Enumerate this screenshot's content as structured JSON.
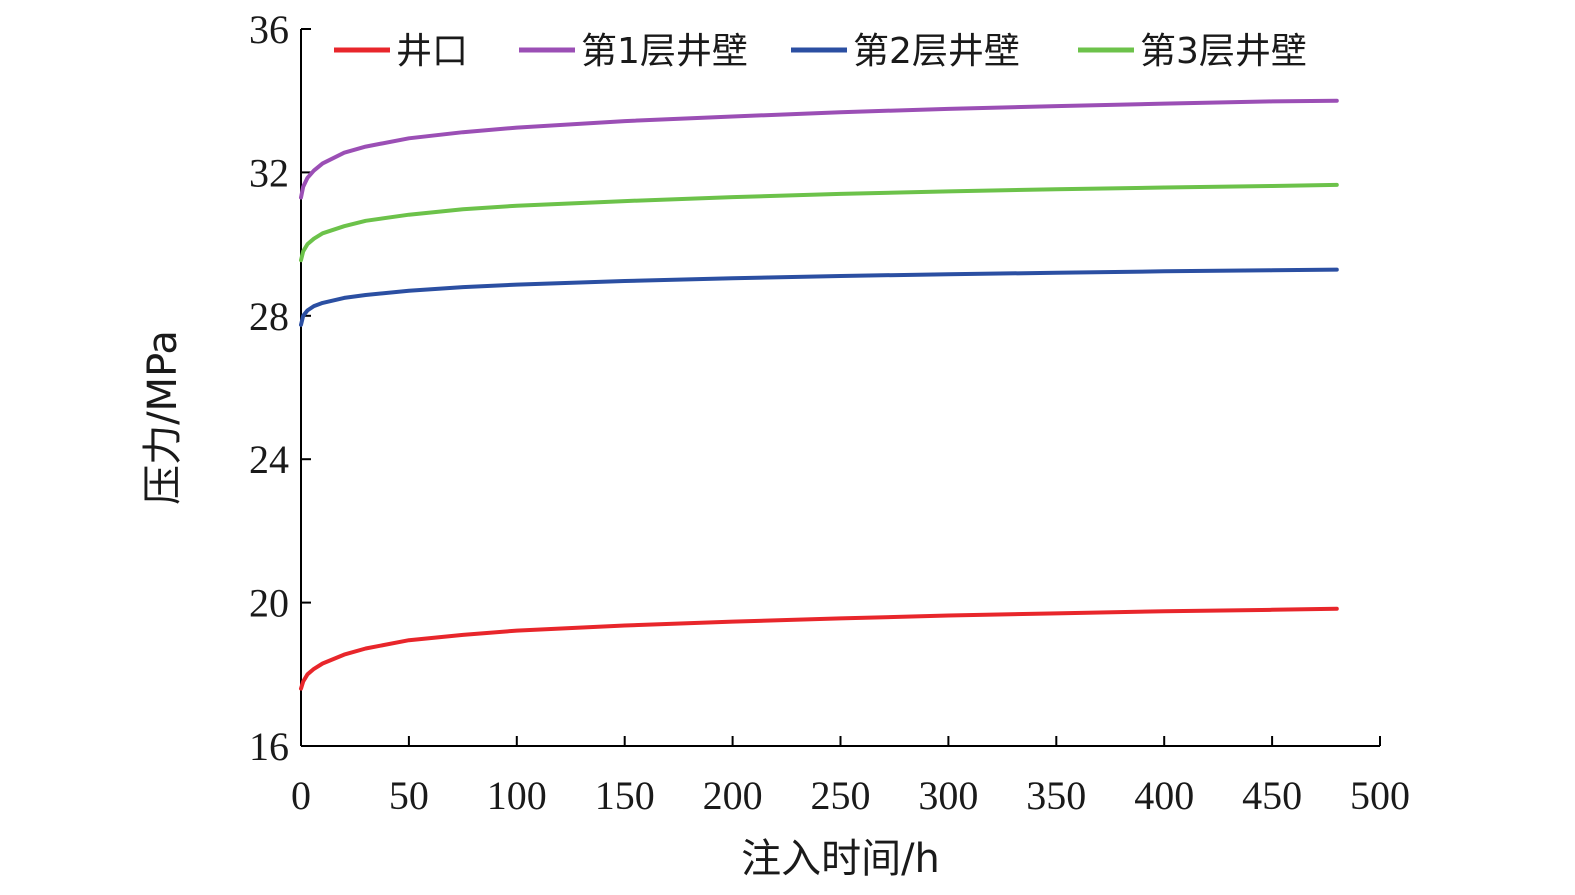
{
  "chart_data": {
    "type": "line",
    "title": "",
    "xlabel": "注入时间/h",
    "ylabel": "压力/MPa",
    "xlim": [
      0,
      500
    ],
    "ylim": [
      16,
      36
    ],
    "xticks": [
      0,
      50,
      100,
      150,
      200,
      250,
      300,
      350,
      400,
      450,
      500
    ],
    "yticks": [
      16,
      20,
      24,
      28,
      32,
      36
    ],
    "grid": false,
    "legend_position": "top",
    "series": [
      {
        "name": "井口",
        "color": "#e8262b",
        "x": [
          0,
          1,
          3,
          6,
          10,
          20,
          30,
          50,
          75,
          100,
          150,
          200,
          250,
          300,
          350,
          400,
          450,
          480
        ],
        "y": [
          17.6,
          17.8,
          18.0,
          18.15,
          18.3,
          18.55,
          18.72,
          18.95,
          19.1,
          19.22,
          19.36,
          19.47,
          19.56,
          19.64,
          19.7,
          19.76,
          19.8,
          19.83
        ]
      },
      {
        "name": "第1层井壁",
        "color": "#9b4fb5",
        "x": [
          0,
          1,
          3,
          6,
          10,
          20,
          30,
          50,
          75,
          100,
          150,
          200,
          250,
          300,
          350,
          400,
          450,
          480
        ],
        "y": [
          31.3,
          31.6,
          31.85,
          32.05,
          32.25,
          32.55,
          32.72,
          32.95,
          33.12,
          33.25,
          33.43,
          33.56,
          33.68,
          33.77,
          33.85,
          33.92,
          33.98,
          34.0
        ]
      },
      {
        "name": "第2层井壁",
        "color": "#2b4fa2",
        "x": [
          0,
          1,
          3,
          6,
          10,
          20,
          30,
          50,
          75,
          100,
          150,
          200,
          250,
          300,
          350,
          400,
          450,
          480
        ],
        "y": [
          27.75,
          28.0,
          28.15,
          28.27,
          28.36,
          28.5,
          28.58,
          28.7,
          28.8,
          28.87,
          28.97,
          29.05,
          29.11,
          29.16,
          29.2,
          29.24,
          29.27,
          29.29
        ]
      },
      {
        "name": "第3层井壁",
        "color": "#6cc24a",
        "x": [
          0,
          1,
          3,
          6,
          10,
          20,
          30,
          50,
          75,
          100,
          150,
          200,
          250,
          300,
          350,
          400,
          450,
          480
        ],
        "y": [
          29.55,
          29.8,
          30.0,
          30.15,
          30.3,
          30.5,
          30.65,
          30.82,
          30.97,
          31.07,
          31.2,
          31.31,
          31.4,
          31.47,
          31.53,
          31.58,
          31.62,
          31.65
        ]
      }
    ]
  }
}
